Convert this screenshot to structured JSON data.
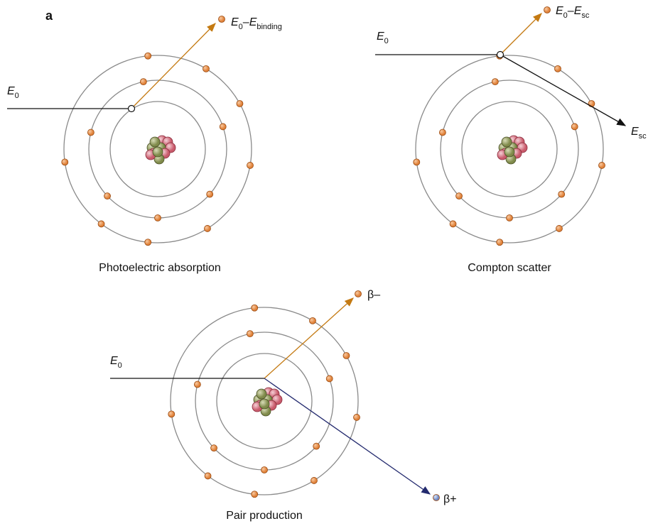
{
  "panel_label": "a",
  "diagrams": [
    {
      "caption": "Photoelectric absorption",
      "incident": [
        {
          "text": "E",
          "italic": true
        },
        {
          "text": "0",
          "sub": true
        }
      ],
      "outgoing": [
        {
          "text": "E",
          "italic": true
        },
        {
          "text": "0",
          "sub": true
        },
        {
          "text": "–"
        },
        {
          "text": "E",
          "italic": true
        },
        {
          "text": "binding",
          "sub": true
        }
      ]
    },
    {
      "caption": "Compton scatter",
      "incident": [
        {
          "text": "E",
          "italic": true
        },
        {
          "text": "0",
          "sub": true
        }
      ],
      "outgoing": [
        {
          "text": "E",
          "italic": true
        },
        {
          "text": "0",
          "sub": true
        },
        {
          "text": "–"
        },
        {
          "text": "E",
          "italic": true
        },
        {
          "text": "sc",
          "sub": true
        }
      ],
      "scattered": [
        {
          "text": "E",
          "italic": true
        },
        {
          "text": "sc",
          "sub": true
        }
      ]
    },
    {
      "caption": "Pair production",
      "incident": [
        {
          "text": "E",
          "italic": true
        },
        {
          "text": "0",
          "sub": true
        }
      ],
      "outgoing": [
        {
          "text": "β–"
        }
      ],
      "scattered": [
        {
          "text": "β+"
        }
      ]
    }
  ]
}
